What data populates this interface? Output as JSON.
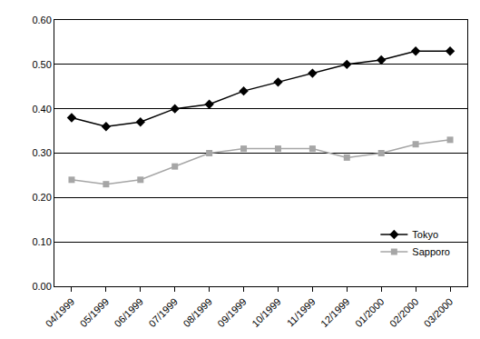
{
  "chart_data": {
    "type": "line",
    "categories": [
      "04/1999",
      "05/1999",
      "06/1999",
      "07/1999",
      "08/1999",
      "09/1999",
      "10/1999",
      "11/1999",
      "12/1999",
      "01/2000",
      "02/2000",
      "03/2000"
    ],
    "series": [
      {
        "name": "Tokyo",
        "color": "#000000",
        "marker": "diamond",
        "line_style": "solid",
        "values": [
          0.38,
          0.36,
          0.37,
          0.4,
          0.41,
          0.44,
          0.46,
          0.48,
          0.5,
          0.51,
          0.53,
          0.53
        ]
      },
      {
        "name": "Sapporo",
        "color": "#a6a6a6",
        "marker": "square",
        "line_style": "solid",
        "values": [
          0.24,
          0.23,
          0.24,
          0.27,
          0.3,
          0.31,
          0.31,
          0.31,
          0.29,
          0.3,
          0.32,
          0.33
        ]
      }
    ],
    "ylim": [
      0,
      0.6
    ],
    "yticks": [
      {
        "value": 0,
        "label": "0.00"
      },
      {
        "value": 0.1,
        "label": "0.10"
      },
      {
        "value": 0.2,
        "label": "0.20"
      },
      {
        "value": 0.3,
        "label": "0.30"
      },
      {
        "value": 0.4,
        "label": "0.40"
      },
      {
        "value": 0.5,
        "label": "0.50"
      },
      {
        "value": 0.6,
        "label": "0.60"
      }
    ],
    "grid": true,
    "legend": "lower right"
  }
}
